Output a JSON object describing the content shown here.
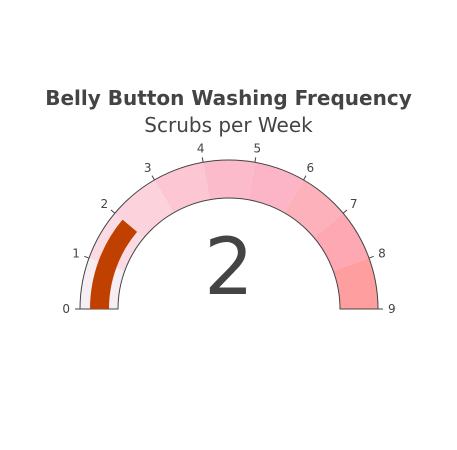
{
  "chart_data": {
    "type": "gauge",
    "title": "Belly Button Washing Frequency",
    "subtitle": "Scrubs per Week",
    "value": 2,
    "range": [
      0,
      9
    ],
    "tick_labels": [
      "0",
      "1",
      "2",
      "3",
      "4",
      "5",
      "6",
      "7",
      "8",
      "9"
    ],
    "bar_color": "#c04000",
    "step_colors": [
      "#f7eef3",
      "#fbdbe3",
      "#fcd3dc",
      "#fcc7d3",
      "#fbbbcb",
      "#fcb5c7",
      "#fdb1bb",
      "#fda8b3",
      "#fe9e9e"
    ],
    "border_color": "#444444"
  }
}
